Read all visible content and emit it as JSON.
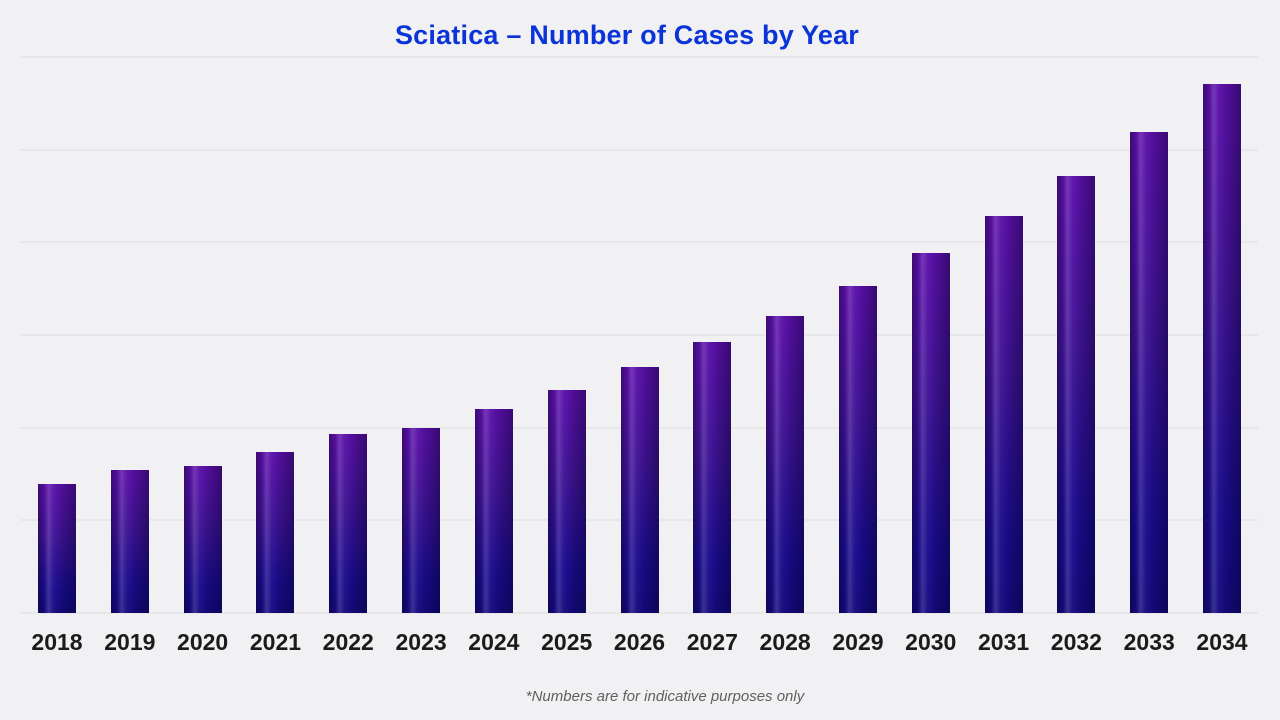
{
  "header": {
    "title": "Sciatica – Number of Cases by Year"
  },
  "footnote": {
    "text": "*Numbers are for indicative purposes only"
  },
  "colors": {
    "background": "#f1f1f3",
    "gridline": "#dddde0",
    "title": "#0a33d8",
    "x_label": "#1b1b1b",
    "footnote": "#5f5f5f",
    "bar_gradient_top": "#5c10aa",
    "bar_gradient_bottom": "#140a7e"
  },
  "chart_data": {
    "type": "bar",
    "title": "Sciatica – Number of Cases by Year",
    "categories": [
      "2018",
      "2019",
      "2020",
      "2021",
      "2022",
      "2023",
      "2024",
      "2025",
      "2026",
      "2027",
      "2028",
      "2029",
      "2030",
      "2031",
      "2032",
      "2033",
      "2034"
    ],
    "values": [
      139,
      154,
      159,
      174,
      193,
      200,
      220,
      241,
      266,
      292,
      321,
      353,
      389,
      428,
      472,
      519,
      571
    ],
    "units": "relative units estimated from gridlines (no y-axis tick labels shown)",
    "xlabel": "",
    "ylabel": "",
    "ylim": [
      0,
      600
    ],
    "grid_interval": 100,
    "grid": true,
    "y_tick_labels_visible": false,
    "legend": false,
    "annotation": "*Numbers are for indicative purposes only"
  }
}
